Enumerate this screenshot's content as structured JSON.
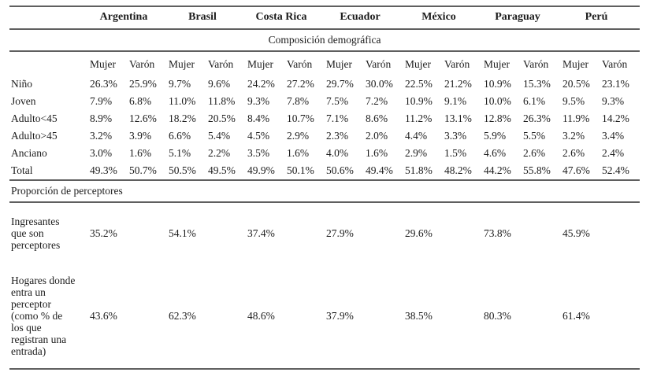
{
  "table": {
    "countries": [
      "Argentina",
      "Brasil",
      "Costa Rica",
      "Ecuador",
      "México",
      "Paraguay",
      "Perú"
    ],
    "section1_title": "Composición demográfica",
    "gender_female": "Mujer",
    "gender_male": "Varón",
    "demo_rows": [
      {
        "label": "Niño",
        "values": [
          "26.3%",
          "25.9%",
          "9.7%",
          "9.6%",
          "24.2%",
          "27.2%",
          "29.7%",
          "30.0%",
          "22.5%",
          "21.2%",
          "10.9%",
          "15.3%",
          "20.5%",
          "23.1%"
        ]
      },
      {
        "label": "Joven",
        "values": [
          "7.9%",
          "6.8%",
          "11.0%",
          "11.8%",
          "9.3%",
          "7.8%",
          "7.5%",
          "7.2%",
          "10.9%",
          "9.1%",
          "10.0%",
          "6.1%",
          "9.5%",
          "9.3%"
        ]
      },
      {
        "label": "Adulto<45",
        "values": [
          "8.9%",
          "12.6%",
          "18.2%",
          "20.5%",
          "8.4%",
          "10.7%",
          "7.1%",
          "8.6%",
          "11.2%",
          "13.1%",
          "12.8%",
          "26.3%",
          "11.9%",
          "14.2%"
        ]
      },
      {
        "label": "Adulto>45",
        "values": [
          "3.2%",
          "3.9%",
          "6.6%",
          "5.4%",
          "4.5%",
          "2.9%",
          "2.3%",
          "2.0%",
          "4.4%",
          "3.3%",
          "5.9%",
          "5.5%",
          "3.2%",
          "3.4%"
        ]
      },
      {
        "label": "Anciano",
        "values": [
          "3.0%",
          "1.6%",
          "5.1%",
          "2.2%",
          "3.5%",
          "1.6%",
          "4.0%",
          "1.6%",
          "2.9%",
          "1.5%",
          "4.6%",
          "2.6%",
          "2.6%",
          "2.4%"
        ]
      },
      {
        "label": "Total",
        "values": [
          "49.3%",
          "50.7%",
          "50.5%",
          "49.5%",
          "49.9%",
          "50.1%",
          "50.6%",
          "49.4%",
          "51.8%",
          "48.2%",
          "44.2%",
          "55.8%",
          "47.6%",
          "52.4%"
        ]
      }
    ],
    "section2_title": "Proporción de perceptores",
    "perceptor_rows": [
      {
        "label": "Ingresantes que son perceptores",
        "values": [
          "35.2%",
          "54.1%",
          "37.4%",
          "27.9%",
          "29.6%",
          "73.8%",
          "45.9%"
        ]
      },
      {
        "label": "Hogares donde entra un perceptor (como % de los que registran una entrada)",
        "values": [
          "43.6%",
          "62.3%",
          "48.6%",
          "37.9%",
          "38.5%",
          "80.3%",
          "61.4%"
        ]
      }
    ]
  },
  "colors": {
    "rule": "#5f5f5f",
    "text": "#1c1c1c",
    "background": "#ffffff"
  }
}
